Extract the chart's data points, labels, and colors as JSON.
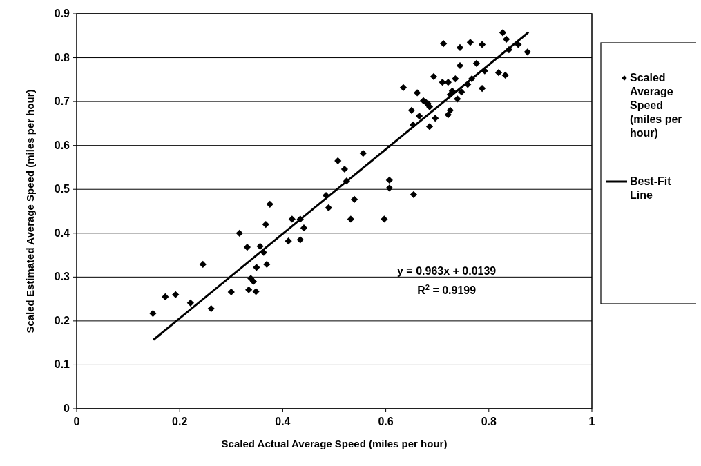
{
  "chart_data": {
    "type": "scatter",
    "xlabel": "Scaled Actual Average Speed (miles per hour)",
    "ylabel": "Scaled Estimated Average Speed (miles per hour)",
    "xlim": [
      0,
      1
    ],
    "xticks": [
      0,
      0.2,
      0.4,
      0.6,
      0.8,
      1
    ],
    "ylim": [
      0,
      0.9
    ],
    "yticks": [
      0,
      0.1,
      0.2,
      0.3,
      0.4,
      0.5,
      0.6,
      0.7,
      0.8,
      0.9
    ],
    "grid": "y",
    "legend": "right",
    "annotations": [
      "y = 0.963x + 0.0139",
      "R$^{2}$ = 0.9199"
    ],
    "series": [
      {
        "name": "Scaled Average Speed (miles per hour)",
        "marker": "diamond",
        "color": "#000000",
        "x": [
          0.148,
          0.172,
          0.192,
          0.221,
          0.245,
          0.261,
          0.3,
          0.316,
          0.331,
          0.334,
          0.338,
          0.343,
          0.348,
          0.349,
          0.356,
          0.363,
          0.367,
          0.369,
          0.375,
          0.411,
          0.418,
          0.434,
          0.441,
          0.434,
          0.484,
          0.489,
          0.507,
          0.556,
          0.52,
          0.524,
          0.539,
          0.532,
          0.597,
          0.607,
          0.607,
          0.654,
          0.712,
          0.744,
          0.764,
          0.787,
          0.827,
          0.834,
          0.857,
          0.839,
          0.875,
          0.744,
          0.776,
          0.819,
          0.832,
          0.792,
          0.693,
          0.71,
          0.721,
          0.735,
          0.767,
          0.759,
          0.787,
          0.747,
          0.729,
          0.725,
          0.739,
          0.682,
          0.685,
          0.725,
          0.721,
          0.696,
          0.685,
          0.634,
          0.65,
          0.661,
          0.665,
          0.673,
          0.653,
          0.678
        ],
        "values": [
          0.217,
          0.255,
          0.26,
          0.241,
          0.329,
          0.228,
          0.266,
          0.4,
          0.368,
          0.271,
          0.297,
          0.29,
          0.267,
          0.322,
          0.37,
          0.356,
          0.42,
          0.329,
          0.466,
          0.382,
          0.432,
          0.432,
          0.412,
          0.385,
          0.486,
          0.458,
          0.565,
          0.582,
          0.546,
          0.519,
          0.477,
          0.432,
          0.432,
          0.521,
          0.503,
          0.488,
          0.832,
          0.823,
          0.835,
          0.83,
          0.857,
          0.842,
          0.83,
          0.818,
          0.813,
          0.782,
          0.787,
          0.766,
          0.76,
          0.77,
          0.757,
          0.744,
          0.744,
          0.752,
          0.752,
          0.739,
          0.73,
          0.722,
          0.724,
          0.716,
          0.706,
          0.695,
          0.688,
          0.68,
          0.67,
          0.662,
          0.643,
          0.732,
          0.68,
          0.72,
          0.667,
          0.702,
          0.647,
          0.698
        ]
      },
      {
        "name": "Best-Fit Line",
        "type": "line",
        "marker": "none",
        "color": "#000000",
        "x": [
          0.149,
          0.877
        ],
        "values": [
          0.157,
          0.858
        ]
      }
    ]
  }
}
